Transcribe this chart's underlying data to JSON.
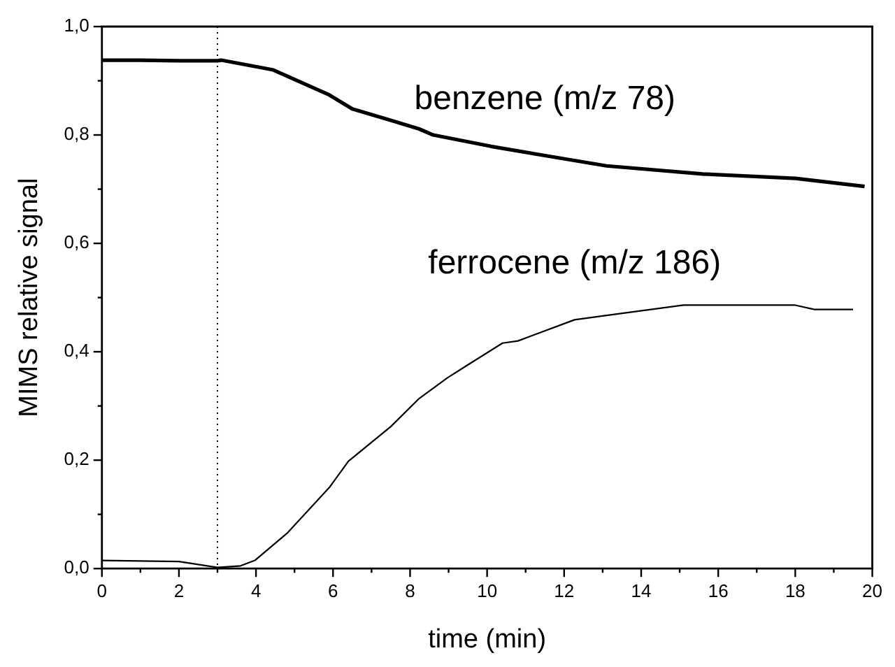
{
  "chart_data": {
    "type": "line",
    "xlabel": "time (min)",
    "ylabel": "MIMS relative signal",
    "xlim": [
      0,
      20
    ],
    "xticks": [
      0,
      {
        "value": 1,
        "label": null
      },
      2,
      {
        "value": 3,
        "label": null
      },
      4,
      {
        "value": 5,
        "label": null
      },
      6,
      {
        "value": 7,
        "label": null
      },
      8,
      {
        "value": 9,
        "label": null
      },
      10,
      {
        "value": 11,
        "label": null
      },
      12,
      {
        "value": 13,
        "label": null
      },
      14,
      {
        "value": 15,
        "label": null
      },
      16,
      {
        "value": 17,
        "label": null
      },
      18,
      {
        "value": 19,
        "label": null
      },
      20
    ],
    "ylim": [
      0,
      1
    ],
    "yticks": [
      {
        "value": 0,
        "label": "0,0"
      },
      {
        "value": 0.1,
        "label": null
      },
      {
        "value": 0.2,
        "label": "0,2"
      },
      {
        "value": 0.3,
        "label": null
      },
      {
        "value": 0.4,
        "label": "0,4"
      },
      {
        "value": 0.5,
        "label": null
      },
      {
        "value": 0.6,
        "label": "0,6"
      },
      {
        "value": 0.7,
        "label": null
      },
      {
        "value": 0.8,
        "label": "0,8"
      },
      {
        "value": 0.9,
        "label": null
      },
      {
        "value": 1,
        "label": "1,0"
      }
    ],
    "grid": false,
    "legend": false,
    "marker": "none",
    "line_style": "solid",
    "ref_lines": [
      {
        "axis": "x",
        "value": 3,
        "color": "#000000",
        "line_style": "dotted"
      }
    ],
    "series": [
      {
        "name": "benzene (m/z 78)",
        "color": "#000000",
        "x": [
          0,
          1,
          2,
          3,
          3.1,
          4.45,
          5.9,
          6.5,
          7.6,
          8.24,
          8.6,
          10.1,
          11.5,
          13.1,
          15.6,
          18,
          19.8
        ],
        "values": [
          0.938,
          0.938,
          0.937,
          0.937,
          0.938,
          0.92,
          0.874,
          0.848,
          0.825,
          0.811,
          0.8,
          0.779,
          0.762,
          0.743,
          0.728,
          0.72,
          0.705
        ]
      },
      {
        "name": "ferrocene (m/z 186)",
        "color": "#000000",
        "x": [
          0,
          2,
          3,
          3.6,
          3.97,
          4.82,
          5.92,
          6.4,
          7.5,
          8.24,
          8.97,
          9.46,
          10.4,
          10.8,
          12.27,
          13.1,
          15.1,
          18,
          18.5,
          19.5
        ],
        "values": [
          0.015,
          0.013,
          0.002,
          0.005,
          0.015,
          0.066,
          0.151,
          0.198,
          0.262,
          0.314,
          0.352,
          0.374,
          0.416,
          0.42,
          0.459,
          0.467,
          0.486,
          0.486,
          0.478,
          0.478
        ]
      }
    ]
  }
}
